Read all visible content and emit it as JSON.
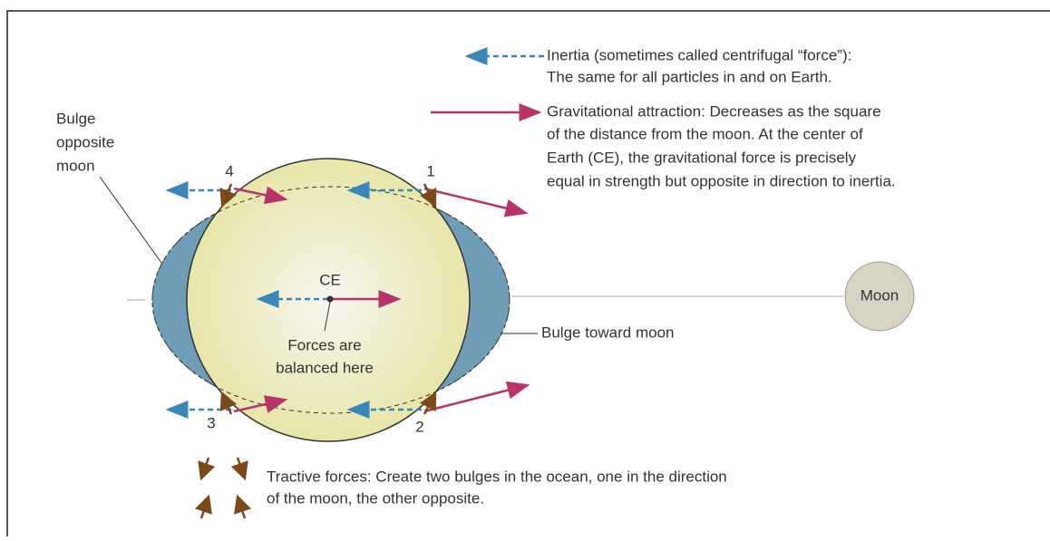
{
  "legend": {
    "inertia": [
      "Inertia (sometimes called centrifugal “force”):",
      "The same for all particles in and on Earth."
    ],
    "gravity": [
      "Gravitational attraction: Decreases as the square",
      "of the distance from the moon. At the center of",
      "Earth (CE), the gravitational force is precisely",
      "equal in strength but opposite in direction to inertia."
    ],
    "tractive": [
      "Tractive forces: Create two bulges in the ocean, one in the direction",
      "of the moon, the other opposite."
    ]
  },
  "labels": {
    "bulge_opposite": [
      "Bulge",
      "opposite",
      "moon"
    ],
    "bulge_toward": "Bulge toward moon",
    "center": "CE",
    "balanced": [
      "Forces are",
      "balanced here"
    ],
    "moon": "Moon",
    "points": [
      "1",
      "2",
      "3",
      "4"
    ]
  }
}
